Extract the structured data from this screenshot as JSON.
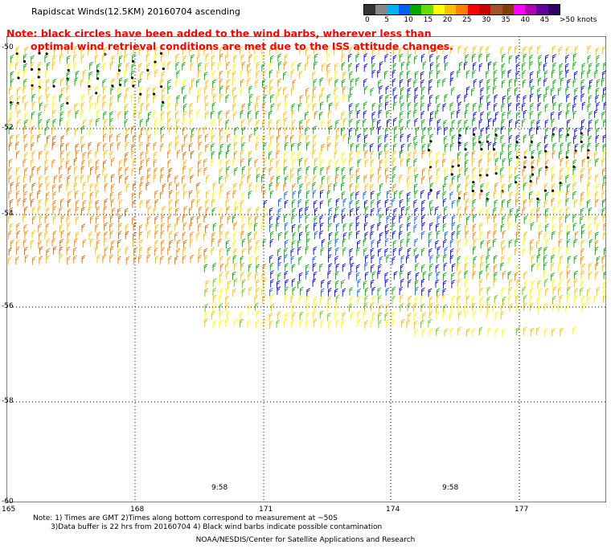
{
  "header": {
    "title": "Rapidscat Winds(12.5KM) 20160704 ascending",
    "note_line1": "Note: black circles have been added to the wind barbs, wherever less than",
    "note_line2": "optimal wind retrieval conditions are met due to the ISS attitude changes."
  },
  "legend": {
    "tick_labels": [
      "0",
      "5",
      "10",
      "15",
      "20",
      "25",
      "30",
      "35",
      "40",
      "45",
      ">50 knots"
    ],
    "colors": [
      "#333333",
      "#888888",
      "#00b0f0",
      "#0060ff",
      "#00aa00",
      "#66dd00",
      "#ffff00",
      "#ffc000",
      "#ff8000",
      "#ff0000",
      "#cc0000",
      "#a0522d",
      "#804000",
      "#ff00ff",
      "#b000b0",
      "#6000a0",
      "#300060"
    ]
  },
  "map": {
    "lat_labels": [
      "-50",
      "-52",
      "-54",
      "-56",
      "-58",
      "-60"
    ],
    "lon_labels": [
      "165",
      "168",
      "171",
      "174",
      "177"
    ],
    "pass_times": [
      "9:58",
      "9:58"
    ]
  },
  "footer": {
    "line1": "Note: 1) Times are GMT 2)Times along bottom correspond to measurement at ~50S",
    "line2": "3)Data buffer is 22 hrs from 20160704 4) Black wind barbs indicate possible contamination",
    "line3": "NOAA/NESDIS/Center for Satellite Applications and Research"
  }
}
